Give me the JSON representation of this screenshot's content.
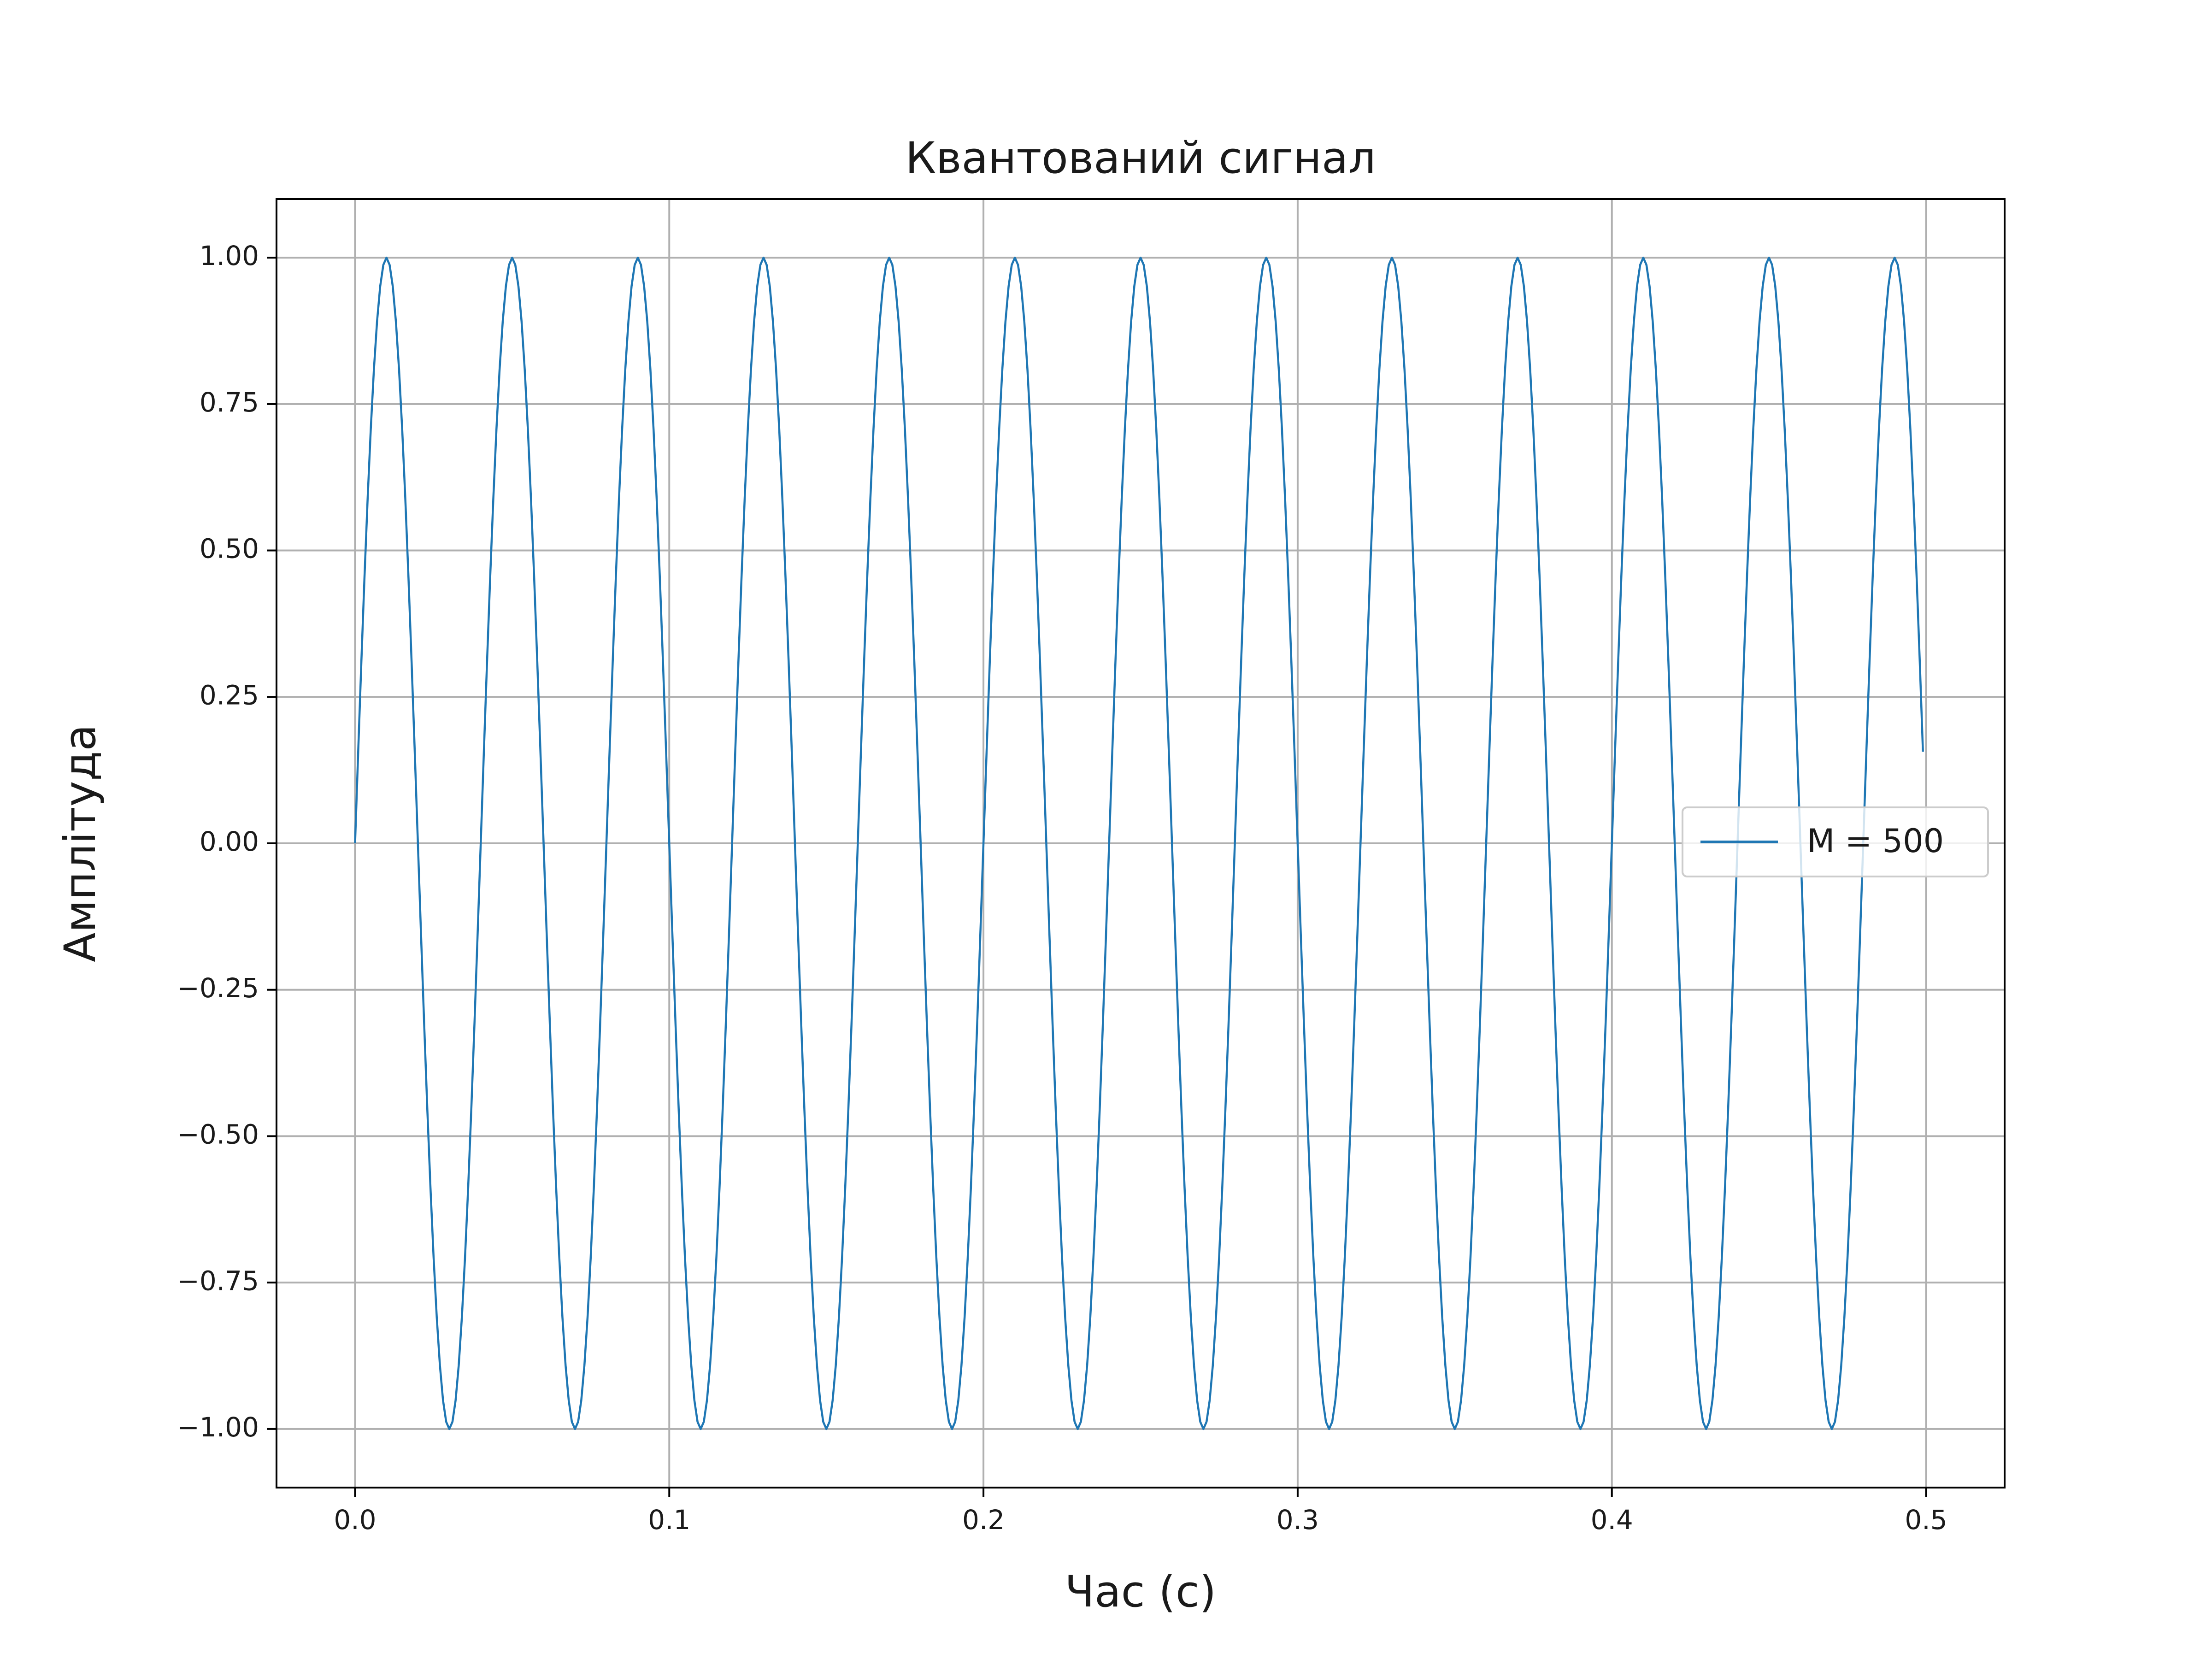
{
  "chart_data": {
    "type": "line",
    "title": "Квантований сигнал",
    "xlabel": "Час (с)",
    "ylabel": "Амплітуда",
    "xlim": [
      -0.025,
      0.525
    ],
    "ylim": [
      -1.1,
      1.1
    ],
    "x_ticks": [
      0.0,
      0.1,
      0.2,
      0.3,
      0.4,
      0.5
    ],
    "x_tick_labels": [
      "0.0",
      "0.1",
      "0.2",
      "0.3",
      "0.4",
      "0.5"
    ],
    "y_ticks": [
      1.0,
      0.75,
      0.5,
      0.25,
      0.0,
      -0.25,
      -0.5,
      -0.75,
      -1.0
    ],
    "y_tick_labels": [
      "1.00",
      "0.75",
      "0.50",
      "0.25",
      "0.00",
      "−0.25",
      "−0.50",
      "−0.75",
      "−1.00"
    ],
    "grid": true,
    "legend_position": "center-right",
    "series": [
      {
        "name": "M = 500",
        "color": "#1f77b4",
        "function": "sin(2*pi*25*t)",
        "x_range": [
          0.0,
          0.499
        ],
        "sample_count": 500
      }
    ]
  }
}
